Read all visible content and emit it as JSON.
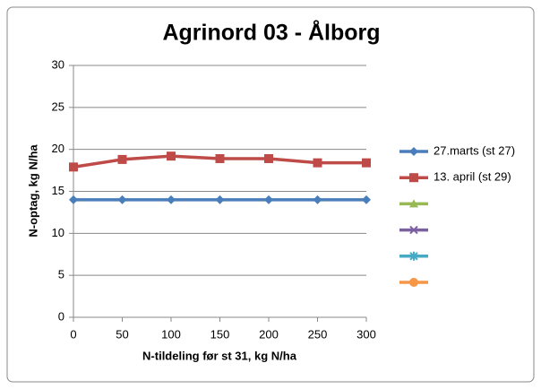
{
  "chart_data": {
    "type": "line",
    "title": "Agrinord 03 - Ålborg",
    "x_label": "N-tildeling før st 31, kg N/ha",
    "y_label": "N-optag, kg N/ha",
    "x": [
      0,
      50,
      100,
      150,
      200,
      250,
      300
    ],
    "xlim": [
      0,
      300
    ],
    "xticks": [
      0,
      50,
      100,
      150,
      200,
      250,
      300
    ],
    "ylim": [
      0,
      30
    ],
    "yticks": [
      0,
      5,
      10,
      15,
      20,
      25,
      30
    ],
    "grid": true,
    "legend": "right",
    "series": [
      {
        "name": "27.marts (st 27)",
        "color": "#4a7ebb",
        "marker": "diamond",
        "values": [
          14,
          14,
          14,
          14,
          14,
          14,
          14
        ]
      },
      {
        "name": "13. april (st 29)",
        "color": "#be4b48",
        "marker": "square",
        "values": [
          17.9,
          18.8,
          19.2,
          18.9,
          18.9,
          18.4,
          18.4
        ]
      },
      {
        "name": null,
        "color": "#98b954",
        "marker": "triangle",
        "values": [
          null,
          null,
          null,
          null,
          null,
          null,
          null
        ]
      },
      {
        "name": null,
        "color": "#7d60a0",
        "marker": "x",
        "values": [
          null,
          null,
          null,
          null,
          null,
          null,
          null
        ]
      },
      {
        "name": null,
        "color": "#46aac5",
        "marker": "star",
        "values": [
          null,
          null,
          null,
          null,
          null,
          null,
          null
        ]
      },
      {
        "name": null,
        "color": "#f79646",
        "marker": "circle",
        "values": [
          null,
          null,
          null,
          null,
          null,
          null,
          null
        ]
      }
    ]
  }
}
